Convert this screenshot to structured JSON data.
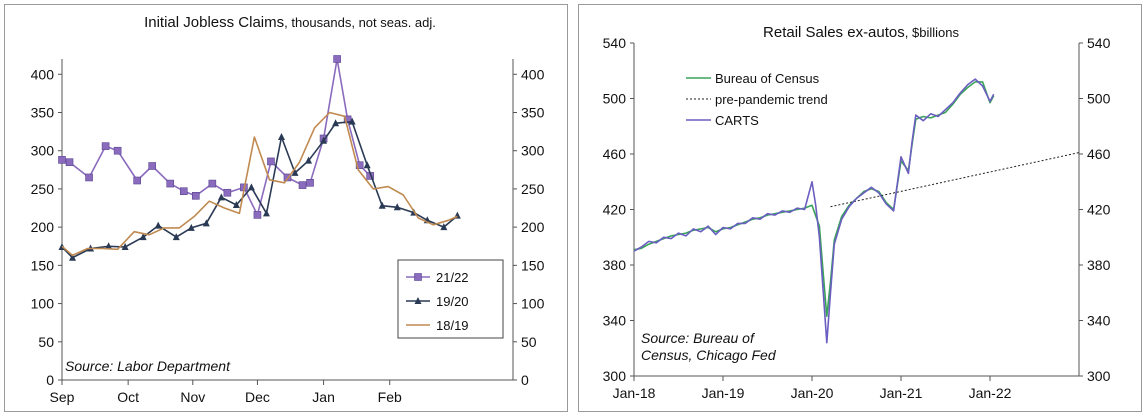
{
  "chart_data": [
    {
      "type": "line",
      "title": "Initial Jobless Claims",
      "subtitle": ", thousands, not seas. adj.",
      "source": "Source: Labor Department",
      "ylim": [
        0,
        420
      ],
      "yticks": [
        0,
        50,
        100,
        150,
        200,
        250,
        300,
        350,
        400
      ],
      "xlim": [
        0,
        30
      ],
      "xtick_labels": [
        {
          "x": 0,
          "label": "Sep"
        },
        {
          "x": 4.4,
          "label": "Oct"
        },
        {
          "x": 8.7,
          "label": "Nov"
        },
        {
          "x": 13.0,
          "label": "Dec"
        },
        {
          "x": 17.4,
          "label": "Jan"
        },
        {
          "x": 21.8,
          "label": "Feb"
        }
      ],
      "legend": "bottom-right",
      "series": [
        {
          "name": "21/22",
          "color": "#8a6bbd",
          "marker": "square",
          "x": [
            0,
            0.5,
            1.8,
            2.9,
            3.7,
            5.0,
            6.0,
            7.2,
            8.1,
            8.9,
            10.0,
            11.0,
            12.1,
            13.0,
            13.9,
            15.0,
            16.0,
            16.5,
            17.4,
            18.3,
            19.0,
            19.8,
            20.5
          ],
          "values": [
            288,
            285,
            265,
            306,
            300,
            261,
            280,
            257,
            247,
            241,
            257,
            245,
            252,
            216,
            286,
            265,
            255,
            258,
            316,
            420,
            341,
            281,
            267
          ]
        },
        {
          "name": "19/20",
          "color": "#2a3a55",
          "marker": "triangle",
          "x": [
            0,
            0.7,
            1.9,
            3.1,
            4.2,
            5.4,
            6.4,
            7.6,
            8.6,
            9.6,
            10.6,
            11.6,
            12.6,
            13.6,
            14.6,
            15.5,
            16.4,
            17.4,
            18.2,
            19.3,
            20.3,
            21.3,
            22.3,
            23.4,
            24.3,
            25.4,
            26.3
          ],
          "values": [
            174,
            160,
            172,
            175,
            174,
            187,
            202,
            187,
            199,
            205,
            239,
            229,
            252,
            218,
            318,
            271,
            287,
            313,
            336,
            338,
            281,
            228,
            226,
            219,
            209,
            200,
            215
          ]
        },
        {
          "name": "18/19",
          "color": "#c08a50",
          "x": [
            0,
            0.7,
            1.7,
            2.7,
            3.7,
            4.8,
            5.8,
            6.8,
            7.8,
            8.8,
            9.8,
            10.8,
            11.8,
            12.8,
            13.8,
            14.8,
            15.8,
            16.8,
            17.8,
            18.8,
            19.7,
            20.7,
            21.7,
            22.7,
            23.7,
            24.7,
            25.7,
            26.3
          ],
          "values": [
            175,
            163,
            172,
            172,
            171,
            194,
            190,
            199,
            199,
            214,
            234,
            225,
            218,
            318,
            262,
            258,
            285,
            330,
            350,
            345,
            275,
            250,
            253,
            242,
            212,
            203,
            209,
            214
          ]
        }
      ]
    },
    {
      "type": "line",
      "title": "Retail Sales ex-autos",
      "subtitle": ", $billions",
      "source": "Source: Bureau of Census, Chicago Fed",
      "source_lines": [
        "Source: Bureau of",
        "Census, Chicago Fed"
      ],
      "ylim": [
        300,
        540
      ],
      "yticks": [
        300,
        340,
        380,
        420,
        460,
        500,
        540
      ],
      "xlim": [
        0,
        60
      ],
      "xtick_labels": [
        {
          "x": 0,
          "label": "Jan-18"
        },
        {
          "x": 12,
          "label": "Jan-19"
        },
        {
          "x": 24,
          "label": "Jan-20"
        },
        {
          "x": 36,
          "label": "Jan-21"
        },
        {
          "x": 48,
          "label": "Jan-22"
        }
      ],
      "legend": "top-left",
      "series": [
        {
          "name": "Bureau of Census",
          "color": "#3aa35a",
          "x": [
            0,
            1,
            2,
            3,
            4,
            5,
            6,
            7,
            8,
            9,
            10,
            11,
            12,
            13,
            14,
            15,
            16,
            17,
            18,
            19,
            20,
            21,
            22,
            23,
            24,
            25,
            25.5,
            26,
            26.5,
            27,
            28,
            29,
            30,
            31,
            32,
            33,
            34,
            35,
            36,
            37,
            37.5,
            38,
            39,
            40,
            41,
            42,
            43,
            44,
            45,
            46,
            47,
            48,
            48.5
          ],
          "values": [
            391,
            392,
            395,
            397,
            399,
            401,
            402,
            403,
            405,
            406,
            407,
            404,
            406,
            407,
            409,
            411,
            413,
            414,
            416,
            417,
            418,
            419,
            420,
            421,
            423,
            408,
            375,
            343,
            368,
            398,
            415,
            423,
            428,
            433,
            435,
            433,
            425,
            420,
            455,
            448,
            467,
            485,
            487,
            486,
            488,
            490,
            496,
            503,
            508,
            512,
            512,
            497,
            502
          ]
        },
        {
          "name": "pre-pandemic trend",
          "color": "#222222",
          "dashed": true,
          "x": [
            26.5,
            60
          ],
          "values": [
            422,
            461
          ]
        },
        {
          "name": "CARTS",
          "color": "#6a5ec0",
          "x": [
            0,
            1,
            2,
            3,
            4,
            5,
            6,
            7,
            8,
            9,
            10,
            11,
            12,
            13,
            14,
            15,
            16,
            17,
            18,
            19,
            20,
            21,
            22,
            23,
            24,
            24.5,
            25,
            25.5,
            26,
            26.5,
            27,
            28,
            29,
            30,
            31,
            32,
            33,
            34,
            35,
            36,
            37,
            37.5,
            38,
            39,
            40,
            41,
            42,
            43,
            44,
            45,
            46,
            47,
            48,
            48.5
          ],
          "values": [
            390,
            393,
            397,
            396,
            400,
            399,
            403,
            401,
            406,
            404,
            408,
            402,
            407,
            406,
            410,
            410,
            414,
            413,
            417,
            416,
            419,
            418,
            421,
            420,
            440,
            423,
            400,
            362,
            324,
            360,
            395,
            413,
            422,
            428,
            432,
            436,
            432,
            424,
            419,
            458,
            446,
            469,
            488,
            484,
            489,
            487,
            492,
            497,
            504,
            510,
            514,
            509,
            498,
            503
          ]
        }
      ]
    }
  ]
}
